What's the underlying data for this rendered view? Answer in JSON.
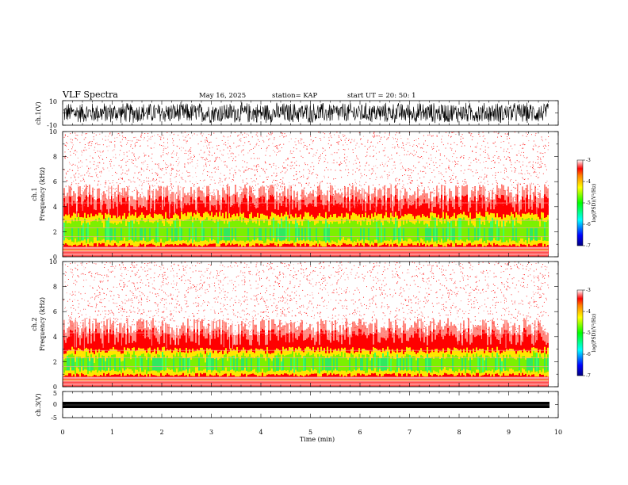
{
  "header": {
    "title": "VLF Spectra",
    "date": "May 16, 2025",
    "station": "station= KAP",
    "start": "start  UT  =   20: 50: 1"
  },
  "chart_data": [
    {
      "type": "line",
      "id": "ch1-waveform",
      "ylabel": "ch.1(V)",
      "ylim": [
        -10,
        10
      ],
      "yticks": [
        "10",
        "-10"
      ],
      "xlim": [
        0,
        10
      ]
    },
    {
      "type": "heatmap",
      "id": "ch1-spectrogram",
      "ylabel": "ch.1\nFrequency (kHz)",
      "ylabel_line1": "ch.1",
      "ylabel_line2": "Frequency  (kHz)",
      "ylim": [
        0,
        10
      ],
      "yticks": [
        "0",
        "2",
        "4",
        "6",
        "8",
        "10"
      ],
      "xlim": [
        0,
        10
      ],
      "data_end_min": 9.8,
      "colorbar": {
        "label": "log(PSD)(V²/Hz)",
        "range": [
          -7,
          -3
        ],
        "ticks": [
          "-3",
          "-4",
          "-5",
          "-6",
          "-7"
        ]
      }
    },
    {
      "type": "heatmap",
      "id": "ch2-spectrogram",
      "ylabel_line1": "ch.2",
      "ylabel_line2": "Frequency  (kHz)",
      "ylim": [
        0,
        10
      ],
      "yticks": [
        "0",
        "2",
        "4",
        "6",
        "8",
        "10"
      ],
      "xlim": [
        0,
        10
      ],
      "data_end_min": 9.8,
      "colorbar": {
        "label": "log(PSD)(V²/Hz)",
        "range": [
          -7,
          -3
        ],
        "ticks": [
          "-3",
          "-4",
          "-5",
          "-6",
          "-7"
        ]
      }
    },
    {
      "type": "line",
      "id": "ch3-waveform",
      "ylabel": "ch.3(V)",
      "ylim": [
        -5,
        5
      ],
      "yticks": [
        "5",
        "0",
        "-5"
      ],
      "xlim": [
        0,
        10
      ],
      "xticks": [
        "0",
        "1",
        "2",
        "3",
        "4",
        "5",
        "6",
        "7",
        "8",
        "9",
        "10"
      ],
      "xlabel": "Time  (min)"
    }
  ],
  "colors": {
    "axis": "#000000",
    "spec_high": "#ff0000",
    "spec_mid": "#ffff00",
    "spec_low": "#00ff00"
  }
}
